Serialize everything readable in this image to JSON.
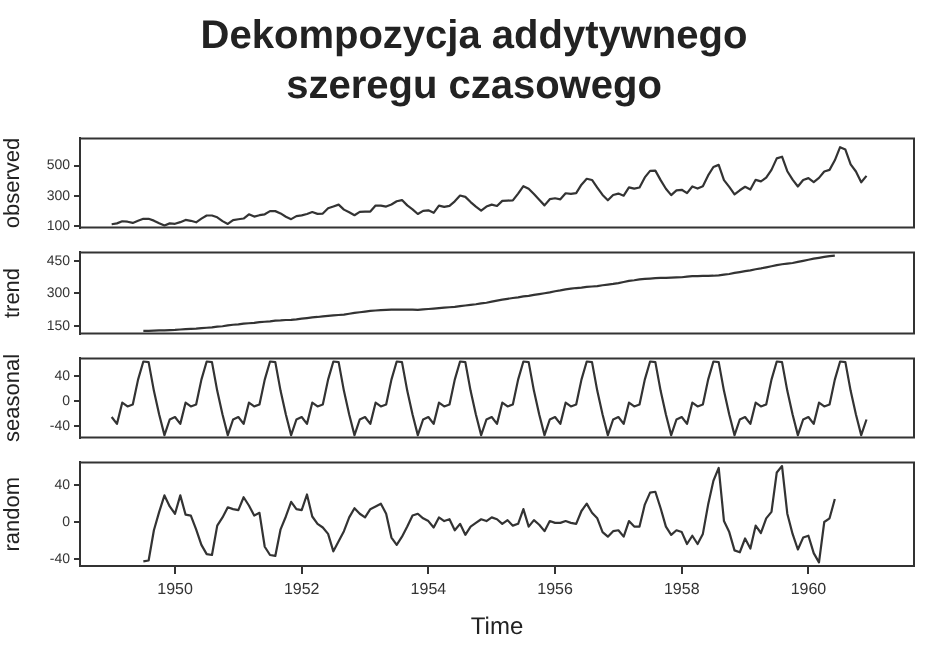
{
  "chart_data": [
    {
      "type": "line",
      "title": "Dekompozycja addytywnego szeregu czasowego",
      "ylabel": "observed",
      "tick_labels": "y",
      "xlim": [
        "1948-07",
        "1961-09"
      ],
      "ylim": [
        90,
        680
      ],
      "yticks": [
        100,
        300,
        500
      ],
      "x": [
        "1949-01",
        "1949-02",
        "1949-03",
        "1949-04",
        "1949-05",
        "1949-06",
        "1949-07",
        "1949-08",
        "1949-09",
        "1949-10",
        "1949-11",
        "1949-12",
        "1950-01",
        "1950-02",
        "1950-03",
        "1950-04",
        "1950-05",
        "1950-06",
        "1950-07",
        "1950-08",
        "1950-09",
        "1950-10",
        "1950-11",
        "1950-12",
        "1951-01",
        "1951-02",
        "1951-03",
        "1951-04",
        "1951-05",
        "1951-06",
        "1951-07",
        "1951-08",
        "1951-09",
        "1951-10",
        "1951-11",
        "1951-12",
        "1952-01",
        "1952-02",
        "1952-03",
        "1952-04",
        "1952-05",
        "1952-06",
        "1952-07",
        "1952-08",
        "1952-09",
        "1952-10",
        "1952-11",
        "1952-12",
        "1953-01",
        "1953-02",
        "1953-03",
        "1953-04",
        "1953-05",
        "1953-06",
        "1953-07",
        "1953-08",
        "1953-09",
        "1953-10",
        "1953-11",
        "1953-12",
        "1954-01",
        "1954-02",
        "1954-03",
        "1954-04",
        "1954-05",
        "1954-06",
        "1954-07",
        "1954-08",
        "1954-09",
        "1954-10",
        "1954-11",
        "1954-12",
        "1955-01",
        "1955-02",
        "1955-03",
        "1955-04",
        "1955-05",
        "1955-06",
        "1955-07",
        "1955-08",
        "1955-09",
        "1955-10",
        "1955-11",
        "1955-12",
        "1956-01",
        "1956-02",
        "1956-03",
        "1956-04",
        "1956-05",
        "1956-06",
        "1956-07",
        "1956-08",
        "1956-09",
        "1956-10",
        "1956-11",
        "1956-12",
        "1957-01",
        "1957-02",
        "1957-03",
        "1957-04",
        "1957-05",
        "1957-06",
        "1957-07",
        "1957-08",
        "1957-09",
        "1957-10",
        "1957-11",
        "1957-12",
        "1958-01",
        "1958-02",
        "1958-03",
        "1958-04",
        "1958-05",
        "1958-06",
        "1958-07",
        "1958-08",
        "1958-09",
        "1958-10",
        "1958-11",
        "1958-12",
        "1959-01",
        "1959-02",
        "1959-03",
        "1959-04",
        "1959-05",
        "1959-06",
        "1959-07",
        "1959-08",
        "1959-09",
        "1959-10",
        "1959-11",
        "1959-12",
        "1960-01",
        "1960-02",
        "1960-03",
        "1960-04",
        "1960-05",
        "1960-06",
        "1960-07",
        "1960-08",
        "1960-09",
        "1960-10",
        "1960-11",
        "1960-12"
      ],
      "series": [
        {
          "color": "#333333",
          "values": [
            112,
            118,
            132,
            129,
            121,
            135,
            148,
            148,
            136,
            119,
            104,
            118,
            115,
            126,
            141,
            135,
            125,
            149,
            170,
            170,
            158,
            133,
            114,
            140,
            145,
            150,
            178,
            163,
            172,
            178,
            199,
            199,
            184,
            162,
            146,
            166,
            171,
            180,
            193,
            181,
            183,
            218,
            230,
            242,
            209,
            191,
            172,
            194,
            196,
            196,
            236,
            235,
            229,
            243,
            264,
            272,
            237,
            211,
            180,
            201,
            204,
            188,
            235,
            227,
            234,
            264,
            302,
            293,
            259,
            229,
            203,
            229,
            242,
            233,
            267,
            269,
            270,
            315,
            364,
            347,
            312,
            274,
            237,
            278,
            284,
            277,
            317,
            313,
            318,
            374,
            413,
            405,
            355,
            306,
            271,
            306,
            315,
            301,
            356,
            348,
            355,
            422,
            465,
            467,
            404,
            347,
            305,
            336,
            340,
            318,
            362,
            348,
            363,
            435,
            491,
            505,
            404,
            359,
            310,
            337,
            360,
            342,
            406,
            396,
            420,
            472,
            548,
            559,
            463,
            407,
            362,
            405,
            417,
            391,
            419,
            461,
            472,
            535,
            622,
            606,
            508,
            461,
            390,
            432
          ]
        }
      ]
    },
    {
      "type": "line",
      "ylabel": "trend",
      "tick_labels": "y",
      "xlim": [
        "1948-07",
        "1961-09"
      ],
      "ylim": [
        114,
        490
      ],
      "yticks": [
        150,
        300,
        450
      ],
      "series": [
        {
          "color": "#333333",
          "x": [
            "1949-07",
            "1949-08",
            "1949-09",
            "1949-10",
            "1949-11",
            "1949-12",
            "1950-01",
            "1950-02",
            "1950-03",
            "1950-04",
            "1950-05",
            "1950-06",
            "1950-07",
            "1950-08",
            "1950-09",
            "1950-10",
            "1950-11",
            "1950-12",
            "1951-01",
            "1951-02",
            "1951-03",
            "1951-04",
            "1951-05",
            "1951-06",
            "1951-07",
            "1951-08",
            "1951-09",
            "1951-10",
            "1951-11",
            "1951-12",
            "1952-01",
            "1952-02",
            "1952-03",
            "1952-04",
            "1952-05",
            "1952-06",
            "1952-07",
            "1952-08",
            "1952-09",
            "1952-10",
            "1952-11",
            "1952-12",
            "1953-01",
            "1953-02",
            "1953-03",
            "1953-04",
            "1953-05",
            "1953-06",
            "1953-07",
            "1953-08",
            "1953-09",
            "1953-10",
            "1953-11",
            "1953-12",
            "1954-01",
            "1954-02",
            "1954-03",
            "1954-04",
            "1954-05",
            "1954-06",
            "1954-07",
            "1954-08",
            "1954-09",
            "1954-10",
            "1954-11",
            "1954-12",
            "1955-01",
            "1955-02",
            "1955-03",
            "1955-04",
            "1955-05",
            "1955-06",
            "1955-07",
            "1955-08",
            "1955-09",
            "1955-10",
            "1955-11",
            "1955-12",
            "1956-01",
            "1956-02",
            "1956-03",
            "1956-04",
            "1956-05",
            "1956-06",
            "1956-07",
            "1956-08",
            "1956-09",
            "1956-10",
            "1956-11",
            "1956-12",
            "1957-01",
            "1957-02",
            "1957-03",
            "1957-04",
            "1957-05",
            "1957-06",
            "1957-07",
            "1957-08",
            "1957-09",
            "1957-10",
            "1957-11",
            "1957-12",
            "1958-01",
            "1958-02",
            "1958-03",
            "1958-04",
            "1958-05",
            "1958-06",
            "1958-07",
            "1958-08",
            "1958-09",
            "1958-10",
            "1958-11",
            "1958-12",
            "1959-01",
            "1959-02",
            "1959-03",
            "1959-04",
            "1959-05",
            "1959-06",
            "1959-07",
            "1959-08",
            "1959-09",
            "1959-10",
            "1959-11",
            "1959-12",
            "1960-01",
            "1960-02",
            "1960-03",
            "1960-04",
            "1960-05",
            "1960-06"
          ],
          "values": [
            127,
            127,
            128,
            129,
            129,
            130,
            131,
            133,
            135,
            136,
            137,
            139,
            141,
            143,
            146,
            148,
            152,
            155,
            157,
            160,
            162,
            164,
            167,
            169,
            171,
            174,
            175,
            177,
            178,
            180,
            183,
            186,
            189,
            191,
            194,
            196,
            198,
            200,
            202,
            206,
            210,
            213,
            216,
            219,
            221,
            223,
            224,
            225,
            225,
            225,
            225,
            225,
            224,
            226,
            228,
            230,
            232,
            234,
            236,
            238,
            241,
            244,
            247,
            250,
            254,
            257,
            262,
            267,
            271,
            275,
            279,
            282,
            286,
            289,
            293,
            297,
            301,
            305,
            310,
            314,
            319,
            322,
            325,
            327,
            330,
            332,
            334,
            338,
            341,
            344,
            348,
            353,
            358,
            361,
            365,
            367,
            369,
            371,
            372,
            372,
            373,
            374,
            375,
            378,
            380,
            380,
            381,
            381,
            382,
            384,
            387,
            390,
            395,
            399,
            403,
            407,
            412,
            416,
            421,
            426,
            431,
            435,
            438,
            441,
            446,
            451,
            456,
            461,
            465,
            469,
            473,
            475
          ]
        }
      ]
    },
    {
      "type": "line",
      "ylabel": "seasonal",
      "tick_labels": "y",
      "xlim": [
        "1948-07",
        "1961-09"
      ],
      "ylim": [
        -58,
        69
      ],
      "yticks": [
        -40,
        0,
        40
      ],
      "x": [
        "1949-01",
        "1949-02",
        "1949-03",
        "1949-04",
        "1949-05",
        "1949-06",
        "1949-07",
        "1949-08",
        "1949-09",
        "1949-10",
        "1949-11",
        "1949-12",
        "1950-01",
        "1950-02",
        "1950-03",
        "1950-04",
        "1950-05",
        "1950-06",
        "1950-07",
        "1950-08",
        "1950-09",
        "1950-10",
        "1950-11",
        "1950-12",
        "1951-01",
        "1951-02",
        "1951-03",
        "1951-04",
        "1951-05",
        "1951-06",
        "1951-07",
        "1951-08",
        "1951-09",
        "1951-10",
        "1951-11",
        "1951-12",
        "1952-01",
        "1952-02",
        "1952-03",
        "1952-04",
        "1952-05",
        "1952-06",
        "1952-07",
        "1952-08",
        "1952-09",
        "1952-10",
        "1952-11",
        "1952-12",
        "1953-01",
        "1953-02",
        "1953-03",
        "1953-04",
        "1953-05",
        "1953-06",
        "1953-07",
        "1953-08",
        "1953-09",
        "1953-10",
        "1953-11",
        "1953-12",
        "1954-01",
        "1954-02",
        "1954-03",
        "1954-04",
        "1954-05",
        "1954-06",
        "1954-07",
        "1954-08",
        "1954-09",
        "1954-10",
        "1954-11",
        "1954-12",
        "1955-01",
        "1955-02",
        "1955-03",
        "1955-04",
        "1955-05",
        "1955-06",
        "1955-07",
        "1955-08",
        "1955-09",
        "1955-10",
        "1955-11",
        "1955-12",
        "1956-01",
        "1956-02",
        "1956-03",
        "1956-04",
        "1956-05",
        "1956-06",
        "1956-07",
        "1956-08",
        "1956-09",
        "1956-10",
        "1956-11",
        "1956-12",
        "1957-01",
        "1957-02",
        "1957-03",
        "1957-04",
        "1957-05",
        "1957-06",
        "1957-07",
        "1957-08",
        "1957-09",
        "1957-10",
        "1957-11",
        "1957-12",
        "1958-01",
        "1958-02",
        "1958-03",
        "1958-04",
        "1958-05",
        "1958-06",
        "1958-07",
        "1958-08",
        "1958-09",
        "1958-10",
        "1958-11",
        "1958-12",
        "1959-01",
        "1959-02",
        "1959-03",
        "1959-04",
        "1959-05",
        "1959-06",
        "1959-07",
        "1959-08",
        "1959-09",
        "1959-10",
        "1959-11",
        "1959-12",
        "1960-01",
        "1960-02",
        "1960-03",
        "1960-04",
        "1960-05",
        "1960-06",
        "1960-07",
        "1960-08",
        "1960-09",
        "1960-10",
        "1960-11",
        "1960-12"
      ],
      "series": [
        {
          "color": "#333333",
          "values": [
            -25,
            -36,
            -2,
            -8,
            -5,
            35,
            64,
            63,
            17,
            -21,
            -54,
            -29,
            -25,
            -36,
            -2,
            -8,
            -5,
            35,
            64,
            63,
            17,
            -21,
            -54,
            -29,
            -25,
            -36,
            -2,
            -8,
            -5,
            35,
            64,
            63,
            17,
            -21,
            -54,
            -29,
            -25,
            -36,
            -2,
            -8,
            -5,
            35,
            64,
            63,
            17,
            -21,
            -54,
            -29,
            -25,
            -36,
            -2,
            -8,
            -5,
            35,
            64,
            63,
            17,
            -21,
            -54,
            -29,
            -25,
            -36,
            -2,
            -8,
            -5,
            35,
            64,
            63,
            17,
            -21,
            -54,
            -29,
            -25,
            -36,
            -2,
            -8,
            -5,
            35,
            64,
            63,
            17,
            -21,
            -54,
            -29,
            -25,
            -36,
            -2,
            -8,
            -5,
            35,
            64,
            63,
            17,
            -21,
            -54,
            -29,
            -25,
            -36,
            -2,
            -8,
            -5,
            35,
            64,
            63,
            17,
            -21,
            -54,
            -29,
            -25,
            -36,
            -2,
            -8,
            -5,
            35,
            64,
            63,
            17,
            -21,
            -54,
            -29,
            -25,
            -36,
            -2,
            -8,
            -5,
            35,
            64,
            63,
            17,
            -21,
            -54,
            -29,
            -25,
            -36,
            -2,
            -8,
            -5,
            35,
            64,
            63,
            17,
            -21,
            -54,
            -29
          ]
        }
      ]
    },
    {
      "type": "line",
      "ylabel": "random",
      "xlabel": "Time",
      "xlim": [
        "1948-07",
        "1961-09"
      ],
      "xticks": [
        {
          "value": "1950-01",
          "label": "1950"
        },
        {
          "value": "1952-01",
          "label": "1952"
        },
        {
          "value": "1954-01",
          "label": "1954"
        },
        {
          "value": "1956-01",
          "label": "1956"
        },
        {
          "value": "1958-01",
          "label": "1958"
        },
        {
          "value": "1960-01",
          "label": "1960"
        }
      ],
      "ylim": [
        -48,
        65
      ],
      "yticks": [
        -40,
        0,
        40
      ],
      "series": [
        {
          "color": "#333333",
          "x": [
            "1949-07",
            "1949-08",
            "1949-09",
            "1949-10",
            "1949-11",
            "1949-12",
            "1950-01",
            "1950-02",
            "1950-03",
            "1950-04",
            "1950-05",
            "1950-06",
            "1950-07",
            "1950-08",
            "1950-09",
            "1950-10",
            "1950-11",
            "1950-12",
            "1951-01",
            "1951-02",
            "1951-03",
            "1951-04",
            "1951-05",
            "1951-06",
            "1951-07",
            "1951-08",
            "1951-09",
            "1951-10",
            "1951-11",
            "1951-12",
            "1952-01",
            "1952-02",
            "1952-03",
            "1952-04",
            "1952-05",
            "1952-06",
            "1952-07",
            "1952-08",
            "1952-09",
            "1952-10",
            "1952-11",
            "1952-12",
            "1953-01",
            "1953-02",
            "1953-03",
            "1953-04",
            "1953-05",
            "1953-06",
            "1953-07",
            "1953-08",
            "1953-09",
            "1953-10",
            "1953-11",
            "1953-12",
            "1954-01",
            "1954-02",
            "1954-03",
            "1954-04",
            "1954-05",
            "1954-06",
            "1954-07",
            "1954-08",
            "1954-09",
            "1954-10",
            "1954-11",
            "1954-12",
            "1955-01",
            "1955-02",
            "1955-03",
            "1955-04",
            "1955-05",
            "1955-06",
            "1955-07",
            "1955-08",
            "1955-09",
            "1955-10",
            "1955-11",
            "1955-12",
            "1956-01",
            "1956-02",
            "1956-03",
            "1956-04",
            "1956-05",
            "1956-06",
            "1956-07",
            "1956-08",
            "1956-09",
            "1956-10",
            "1956-11",
            "1956-12",
            "1957-01",
            "1957-02",
            "1957-03",
            "1957-04",
            "1957-05",
            "1957-06",
            "1957-07",
            "1957-08",
            "1957-09",
            "1957-10",
            "1957-11",
            "1957-12",
            "1958-01",
            "1958-02",
            "1958-03",
            "1958-04",
            "1958-05",
            "1958-06",
            "1958-07",
            "1958-08",
            "1958-09",
            "1958-10",
            "1958-11",
            "1958-12",
            "1959-01",
            "1959-02",
            "1959-03",
            "1959-04",
            "1959-05",
            "1959-06",
            "1959-07",
            "1959-08",
            "1959-09",
            "1959-10",
            "1959-11",
            "1959-12",
            "1960-01",
            "1960-02",
            "1960-03",
            "1960-04",
            "1960-05",
            "1960-06"
          ],
          "values": [
            -43,
            -42,
            -9,
            11,
            29,
            17,
            9,
            29,
            8,
            7,
            -8,
            -25,
            -35,
            -36,
            -4,
            5,
            16,
            14,
            13,
            27,
            18,
            7,
            10,
            -27,
            -36,
            -37,
            -8,
            6,
            22,
            14,
            13,
            30,
            6,
            -2,
            -6,
            -13,
            -32,
            -21,
            -10,
            5,
            15,
            9,
            5,
            14,
            17,
            20,
            9,
            -17,
            -25,
            -16,
            -5,
            7,
            9,
            4,
            1,
            -6,
            5,
            1,
            3,
            -9,
            -2,
            -14,
            -5,
            -1,
            3,
            1,
            5,
            3,
            -2,
            2,
            -4,
            -2,
            14,
            -5,
            2,
            -3,
            -10,
            1,
            -1,
            -1,
            1,
            -1,
            -2,
            12,
            20,
            10,
            4,
            -11,
            -16,
            -10,
            -9,
            -16,
            1,
            -5,
            -5,
            19,
            32,
            33,
            15,
            -5,
            -14,
            -9,
            -11,
            -24,
            -15,
            -24,
            -13,
            19,
            45,
            59,
            1,
            -11,
            -31,
            -33,
            -18,
            -29,
            -4,
            -12,
            4,
            11,
            54,
            61,
            9,
            -13,
            -30,
            -17,
            -15,
            -34,
            -44,
            0,
            4,
            25
          ]
        }
      ]
    }
  ]
}
